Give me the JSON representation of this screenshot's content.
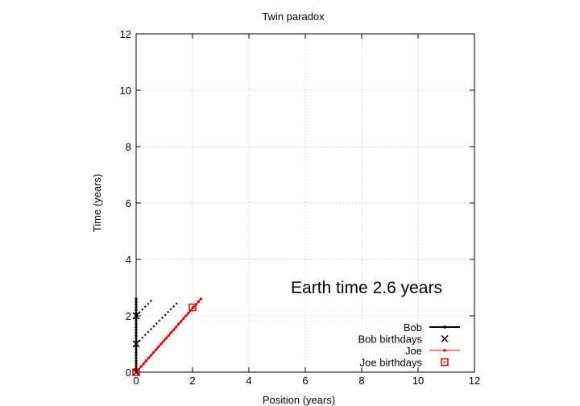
{
  "chart_data": {
    "type": "line",
    "title": "Twin paradox",
    "xlabel": "Position (years)",
    "ylabel": "Time (years)",
    "xlim": [
      0,
      12
    ],
    "ylim": [
      0,
      12
    ],
    "x_ticks": [
      "0",
      "2",
      "4",
      "6",
      "8",
      "10",
      "12"
    ],
    "y_ticks": [
      "0",
      "2",
      "4",
      "6",
      "8",
      "10",
      "12"
    ],
    "grid": true,
    "legend_position": "bottom-right",
    "annotation": "Earth time  2.6 years",
    "series": [
      {
        "name": "Bob",
        "style": "line",
        "color": "#000000",
        "points": [
          [
            0,
            0
          ],
          [
            0,
            2.6
          ]
        ]
      },
      {
        "name": "Bob birthdays",
        "style": "marker-x",
        "color": "#000000",
        "points": [
          [
            0,
            0
          ],
          [
            0,
            1
          ],
          [
            0,
            2
          ]
        ]
      },
      {
        "name": "Joe",
        "style": "line",
        "color": "#e00000",
        "points": [
          [
            0,
            0
          ],
          [
            2.3,
            2.6
          ]
        ]
      },
      {
        "name": "Joe birthdays",
        "style": "marker-square",
        "color": "#e00000",
        "points": [
          [
            0,
            0
          ],
          [
            2,
            2.3
          ]
        ]
      }
    ],
    "light_rays": [
      {
        "color": "#000000",
        "points": [
          [
            0,
            1
          ],
          [
            1.5,
            2.5
          ]
        ]
      },
      {
        "color": "#000000",
        "points": [
          [
            0,
            2
          ],
          [
            0.6,
            2.6
          ]
        ]
      }
    ]
  }
}
